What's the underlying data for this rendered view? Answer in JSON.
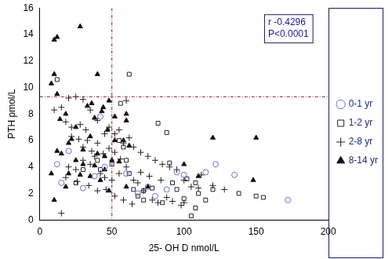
{
  "chart_data": {
    "type": "scatter",
    "x_label": "25- OH D nmol/L",
    "y_label": "PTH pmol/L",
    "annotations": [
      "r -0.4296",
      "P<0.0001"
    ],
    "reference_lines": {
      "x": [
        50
      ],
      "y": [
        9.3
      ]
    },
    "xlim": [
      0,
      200
    ],
    "xticks": [
      0,
      50,
      100,
      150,
      200
    ],
    "ylim": [
      0,
      16
    ],
    "yticks": [
      0,
      2,
      4,
      6,
      8,
      10,
      12,
      14,
      16
    ],
    "grid": false,
    "legend": "right",
    "series": [
      {
        "name": "0-1 yr",
        "color": "#6b6bd6",
        "marker": "circle",
        "x": [
          12,
          15,
          20,
          30,
          38,
          42,
          68,
          75,
          80,
          95,
          100,
          115,
          122,
          135,
          172,
          45,
          60,
          88
        ],
        "values": [
          4.2,
          2.8,
          5.2,
          2.4,
          3.3,
          7.8,
          2,
          2.5,
          1.8,
          3.6,
          3.4,
          3.6,
          4.2,
          3.4,
          1.5,
          4,
          3.5,
          2.3
        ]
      },
      {
        "name": "1-2 yr",
        "color": "#222222",
        "marker": "square",
        "x": [
          12,
          30,
          40,
          50,
          55,
          58,
          60,
          62,
          65,
          68,
          72,
          78,
          82,
          88,
          90,
          92,
          95,
          100,
          102,
          105,
          108,
          110,
          115,
          120,
          138,
          150,
          155,
          62,
          56,
          42,
          25,
          85,
          72,
          108
        ],
        "values": [
          10.6,
          3.8,
          4.5,
          4.2,
          6,
          5.5,
          4.5,
          3.5,
          2.3,
          1.8,
          2.2,
          2.4,
          7.3,
          6.6,
          4.3,
          2.8,
          2.3,
          1.6,
          3.1,
          0.3,
          2.8,
          2,
          1.5,
          2.3,
          2,
          1.8,
          1.7,
          11,
          8.8,
          3.8,
          2.8,
          1.3,
          1.5,
          0.9
        ]
      },
      {
        "name": "2-8 yr",
        "color": "#222222",
        "marker": "cross",
        "x": [
          20,
          25,
          10,
          15,
          18,
          22,
          28,
          32,
          35,
          40,
          45,
          48,
          52,
          55,
          58,
          62,
          65,
          70,
          75,
          80,
          85,
          90,
          95,
          100,
          105,
          110,
          112,
          120,
          128,
          15,
          20,
          25,
          30,
          35,
          38,
          42,
          45,
          50,
          55,
          60,
          65,
          68,
          72,
          78,
          82,
          88,
          92,
          98,
          100,
          30,
          33,
          36,
          40,
          44,
          48,
          52,
          56,
          18,
          26,
          34,
          40,
          46,
          52,
          58,
          64,
          70,
          76,
          84,
          22,
          27,
          60,
          30
        ],
        "values": [
          9.2,
          9.3,
          8.3,
          8.5,
          7.4,
          7,
          7.2,
          6.8,
          8.3,
          7.5,
          6.5,
          7,
          6.5,
          6.8,
          5.8,
          6.2,
          5.5,
          5.1,
          4.8,
          4.5,
          4.2,
          4,
          3.8,
          3,
          2.5,
          2.4,
          3.4,
          2.6,
          2.3,
          0.5,
          4,
          3.8,
          4.5,
          4.2,
          4.8,
          3.5,
          3.2,
          3,
          3.5,
          4,
          3,
          2.8,
          2.2,
          1.5,
          1.3,
          1.7,
          1.4,
          1.1,
          1.3,
          5.5,
          6,
          5.2,
          5.8,
          5,
          5.4,
          5.1,
          4.6,
          3.2,
          2.9,
          2.6,
          2.2,
          2.3,
          1.8,
          1.5,
          1.2,
          3.6,
          3.3,
          3,
          6.3,
          6.1,
          9,
          9.1
        ]
      },
      {
        "name": "8-14 yr",
        "color": "#111111",
        "marker": "triangle",
        "x": [
          10,
          12,
          8,
          10,
          28,
          40,
          36,
          33,
          38,
          43,
          48,
          60,
          60,
          52,
          12,
          18,
          14,
          25,
          47,
          52,
          58,
          62,
          35,
          22,
          20,
          30,
          40,
          45,
          50,
          55,
          15,
          25,
          30,
          38,
          45,
          20,
          28,
          35,
          42,
          10,
          18,
          48,
          60,
          75,
          120,
          150,
          148,
          110,
          100,
          8,
          12,
          44
        ],
        "values": [
          13.6,
          13.8,
          10.3,
          11,
          14.6,
          11,
          8.8,
          8.6,
          7.7,
          8.2,
          9,
          8,
          7.5,
          7.8,
          9.5,
          8,
          7.6,
          7,
          6.8,
          6,
          6,
          5.6,
          6.3,
          6.1,
          5.8,
          5.3,
          5,
          4.8,
          4.5,
          4.4,
          5,
          4.5,
          4.2,
          4.1,
          3.8,
          3.5,
          3.4,
          3.3,
          3,
          1.5,
          2.5,
          2.2,
          2.5,
          2.5,
          6.2,
          6.2,
          3,
          3.3,
          4.2,
          3.5,
          5.2,
          8.5
        ]
      }
    ]
  }
}
